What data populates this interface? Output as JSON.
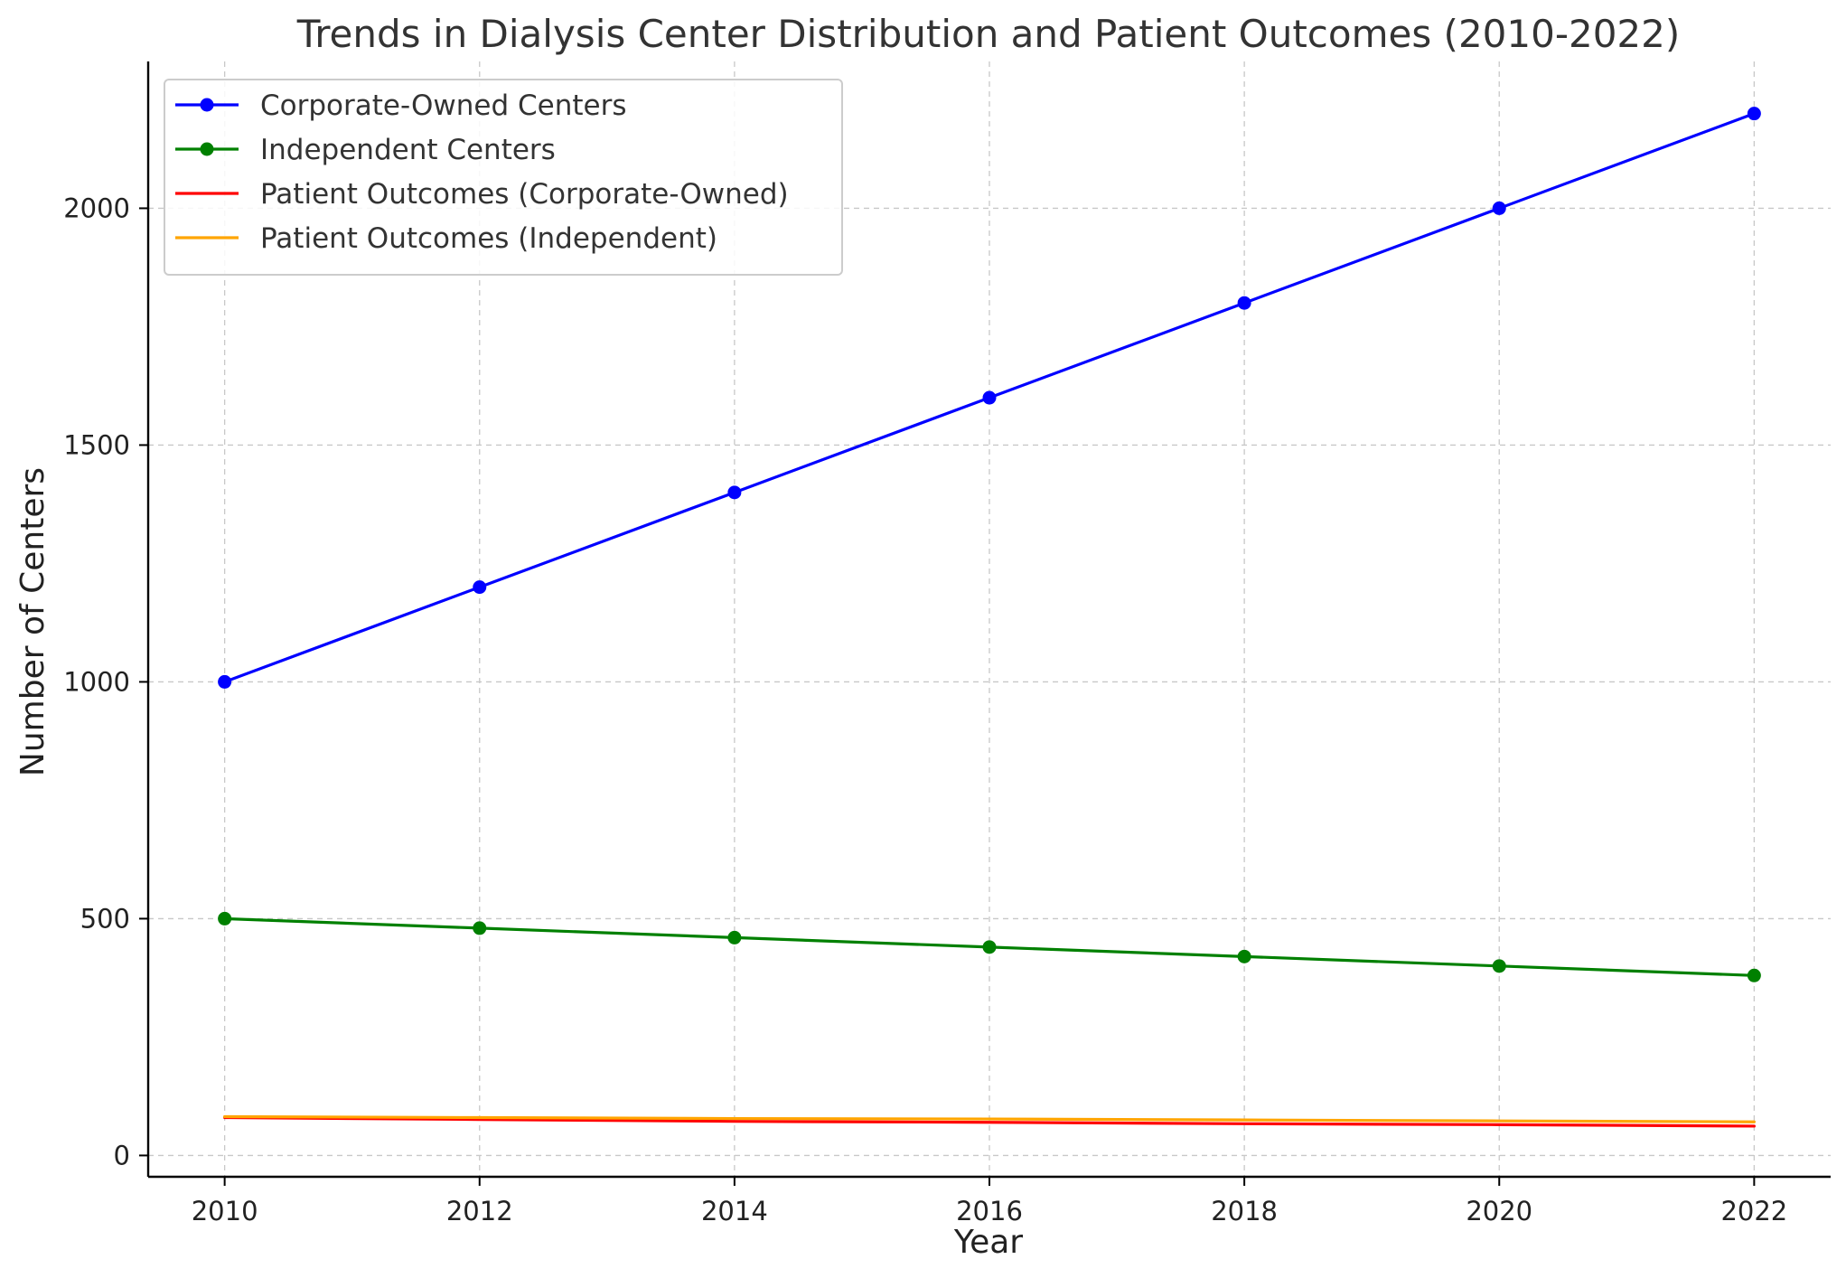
{
  "chart_data": {
    "type": "line",
    "title": "Trends in Dialysis Center Distribution and Patient Outcomes (2010-2022)",
    "xlabel": "Year",
    "ylabel": "Number of Centers",
    "x": [
      2010,
      2012,
      2014,
      2016,
      2018,
      2020,
      2022
    ],
    "xlim": [
      2009.4,
      2022.6
    ],
    "ylim": [
      -45,
      2310
    ],
    "xticks": [
      "2010",
      "2012",
      "2014",
      "2016",
      "2018",
      "2020",
      "2022"
    ],
    "yticks": [
      "0",
      "500",
      "1000",
      "1500",
      "2000"
    ],
    "grid": true,
    "legend_position": "upper-left",
    "series": [
      {
        "name": "Corporate-Owned Centers",
        "color": "#0000ff",
        "marker": "circle",
        "values": [
          1000,
          1200,
          1400,
          1600,
          1800,
          2000,
          2200
        ]
      },
      {
        "name": "Independent Centers",
        "color": "#008000",
        "marker": "circle",
        "values": [
          500,
          480,
          460,
          440,
          420,
          400,
          380
        ]
      },
      {
        "name": "Patient Outcomes (Corporate-Owned)",
        "color": "#ff0000",
        "marker": "none",
        "values": [
          80,
          76,
          72,
          70,
          67,
          65,
          62
        ]
      },
      {
        "name": "Patient Outcomes (Independent)",
        "color": "#ffa500",
        "marker": "none",
        "values": [
          82,
          80,
          78,
          77,
          75,
          73,
          71
        ]
      }
    ]
  }
}
